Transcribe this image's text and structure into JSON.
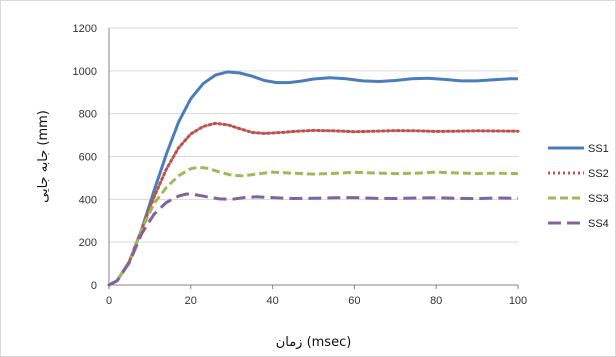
{
  "chart_data": {
    "type": "line",
    "title": "",
    "xlabel": "زمان (msec)",
    "ylabel": "جابه جایی (mm)",
    "xlim": [
      0,
      100
    ],
    "ylim": [
      0,
      1200
    ],
    "x_ticks": [
      "0",
      "20",
      "40",
      "60",
      "80",
      "100"
    ],
    "y_ticks": [
      "0",
      "200",
      "400",
      "600",
      "800",
      "1000",
      "1200"
    ],
    "grid": "horizontal",
    "legend": "right",
    "series": [
      {
        "name": "SS1",
        "color": "#4a7ebb",
        "style": "solid",
        "x": [
          0,
          2,
          5,
          8,
          11,
          14,
          17,
          20,
          23,
          26,
          29,
          32,
          35,
          38,
          41,
          44,
          47,
          50,
          54,
          58,
          62,
          66,
          70,
          74,
          78,
          82,
          86,
          90,
          94,
          98,
          100
        ],
        "y": [
          0,
          20,
          110,
          260,
          440,
          610,
          760,
          870,
          940,
          980,
          995,
          990,
          975,
          955,
          945,
          945,
          952,
          962,
          968,
          963,
          953,
          950,
          955,
          963,
          965,
          960,
          953,
          953,
          958,
          963,
          963
        ]
      },
      {
        "name": "SS2",
        "color": "#c0504d",
        "style": "dotted",
        "x": [
          0,
          2,
          5,
          8,
          11,
          14,
          17,
          20,
          23,
          26,
          29,
          32,
          35,
          38,
          42,
          46,
          50,
          55,
          60,
          65,
          70,
          75,
          80,
          85,
          90,
          95,
          100
        ],
        "y": [
          0,
          20,
          110,
          260,
          410,
          540,
          640,
          705,
          740,
          755,
          748,
          730,
          712,
          708,
          712,
          718,
          722,
          720,
          716,
          718,
          721,
          720,
          717,
          718,
          720,
          719,
          718
        ]
      },
      {
        "name": "SS3",
        "color": "#9bbb59",
        "style": "dashed",
        "x": [
          0,
          2,
          5,
          8,
          11,
          14,
          17,
          20,
          22,
          24,
          27,
          30,
          33,
          36,
          40,
          45,
          50,
          55,
          60,
          65,
          70,
          75,
          80,
          85,
          90,
          95,
          100
        ],
        "y": [
          0,
          20,
          110,
          260,
          380,
          455,
          510,
          543,
          550,
          545,
          528,
          512,
          510,
          518,
          527,
          522,
          518,
          521,
          526,
          523,
          520,
          522,
          527,
          523,
          520,
          522,
          520
        ]
      },
      {
        "name": "SS4",
        "color": "#8064a2",
        "style": "longdash",
        "x": [
          0,
          2,
          5,
          8,
          11,
          14,
          17,
          19,
          21,
          24,
          27,
          30,
          33,
          36,
          40,
          45,
          50,
          55,
          60,
          65,
          70,
          75,
          80,
          85,
          90,
          95,
          100
        ],
        "y": [
          0,
          20,
          105,
          240,
          330,
          385,
          415,
          425,
          422,
          412,
          402,
          400,
          408,
          412,
          408,
          404,
          405,
          407,
          408,
          405,
          404,
          406,
          407,
          405,
          404,
          406,
          405
        ]
      }
    ]
  }
}
